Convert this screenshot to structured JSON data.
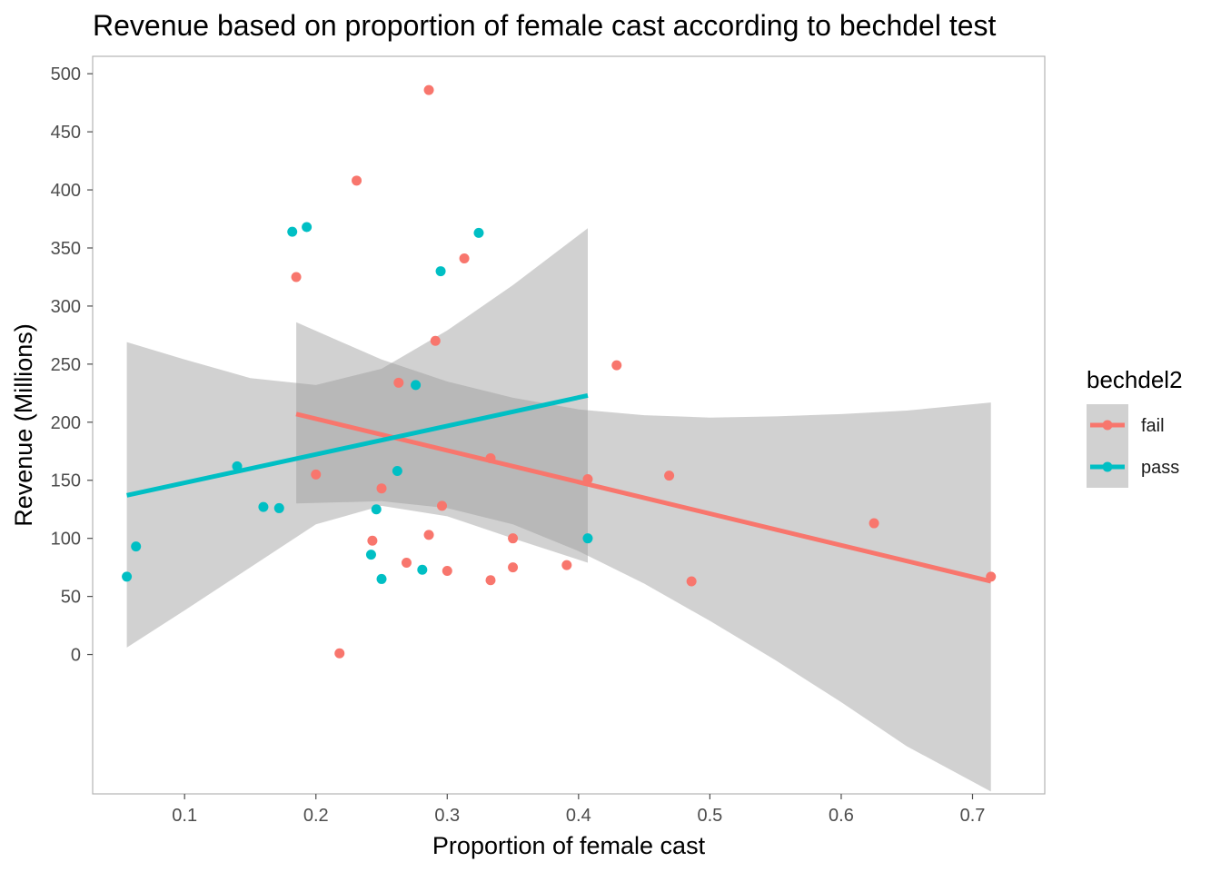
{
  "chart_data": {
    "type": "scatter",
    "title": "Revenue based on proportion of female cast according to bechdel test",
    "xlabel": "Proportion of female cast",
    "ylabel": "Revenue (Millions)",
    "xlim": [
      0.03,
      0.755
    ],
    "ylim": [
      -120,
      515
    ],
    "x_ticks": [
      0.1,
      0.2,
      0.3,
      0.4,
      0.5,
      0.6,
      0.7
    ],
    "x_tick_labels": [
      "0.1",
      "0.2",
      "0.3",
      "0.4",
      "0.5",
      "0.6",
      "0.7"
    ],
    "y_ticks": [
      0,
      50,
      100,
      150,
      200,
      250,
      300,
      350,
      400,
      450,
      500
    ],
    "y_tick_labels": [
      "0",
      "50",
      "100",
      "150",
      "200",
      "250",
      "300",
      "350",
      "400",
      "450",
      "500"
    ],
    "grid": false,
    "legend": {
      "title": "bechdel2",
      "position": "right"
    },
    "ribbon_color": "#999999",
    "series": [
      {
        "name": "fail",
        "color": "#F8766D",
        "points": [
          [
            0.185,
            325
          ],
          [
            0.2,
            155
          ],
          [
            0.218,
            1
          ],
          [
            0.231,
            408
          ],
          [
            0.243,
            98
          ],
          [
            0.25,
            143
          ],
          [
            0.263,
            234
          ],
          [
            0.269,
            79
          ],
          [
            0.286,
            486
          ],
          [
            0.286,
            103
          ],
          [
            0.291,
            270
          ],
          [
            0.296,
            128
          ],
          [
            0.3,
            72
          ],
          [
            0.313,
            341
          ],
          [
            0.333,
            64
          ],
          [
            0.333,
            169
          ],
          [
            0.35,
            100
          ],
          [
            0.35,
            75
          ],
          [
            0.391,
            77
          ],
          [
            0.407,
            151
          ],
          [
            0.429,
            249
          ],
          [
            0.469,
            154
          ],
          [
            0.486,
            63
          ],
          [
            0.625,
            113
          ],
          [
            0.714,
            67
          ]
        ],
        "fit": {
          "x": [
            0.185,
            0.714
          ],
          "y": [
            207,
            63
          ]
        },
        "ribbon": {
          "x": [
            0.185,
            0.25,
            0.3,
            0.35,
            0.4,
            0.45,
            0.5,
            0.55,
            0.6,
            0.65,
            0.714
          ],
          "upper": [
            286,
            254,
            235,
            221,
            211,
            206,
            204,
            205,
            207,
            210,
            217
          ],
          "lower": [
            130,
            132,
            126,
            112,
            89,
            61,
            29,
            -5,
            -41,
            -79,
            -118
          ]
        }
      },
      {
        "name": "pass",
        "color": "#00BFC4",
        "points": [
          [
            0.056,
            67
          ],
          [
            0.063,
            93
          ],
          [
            0.14,
            162
          ],
          [
            0.16,
            127
          ],
          [
            0.172,
            126
          ],
          [
            0.182,
            364
          ],
          [
            0.193,
            368
          ],
          [
            0.242,
            86
          ],
          [
            0.246,
            125
          ],
          [
            0.25,
            65
          ],
          [
            0.262,
            158
          ],
          [
            0.276,
            232
          ],
          [
            0.281,
            73
          ],
          [
            0.295,
            330
          ],
          [
            0.324,
            363
          ],
          [
            0.407,
            100
          ]
        ],
        "fit": {
          "x": [
            0.056,
            0.407
          ],
          "y": [
            137,
            223
          ]
        },
        "ribbon": {
          "x": [
            0.056,
            0.1,
            0.15,
            0.2,
            0.25,
            0.3,
            0.35,
            0.407
          ],
          "upper": [
            269,
            254,
            238,
            232,
            246,
            279,
            318,
            367
          ],
          "lower": [
            6,
            38,
            75,
            112,
            128,
            119,
            100,
            79
          ]
        }
      }
    ]
  }
}
